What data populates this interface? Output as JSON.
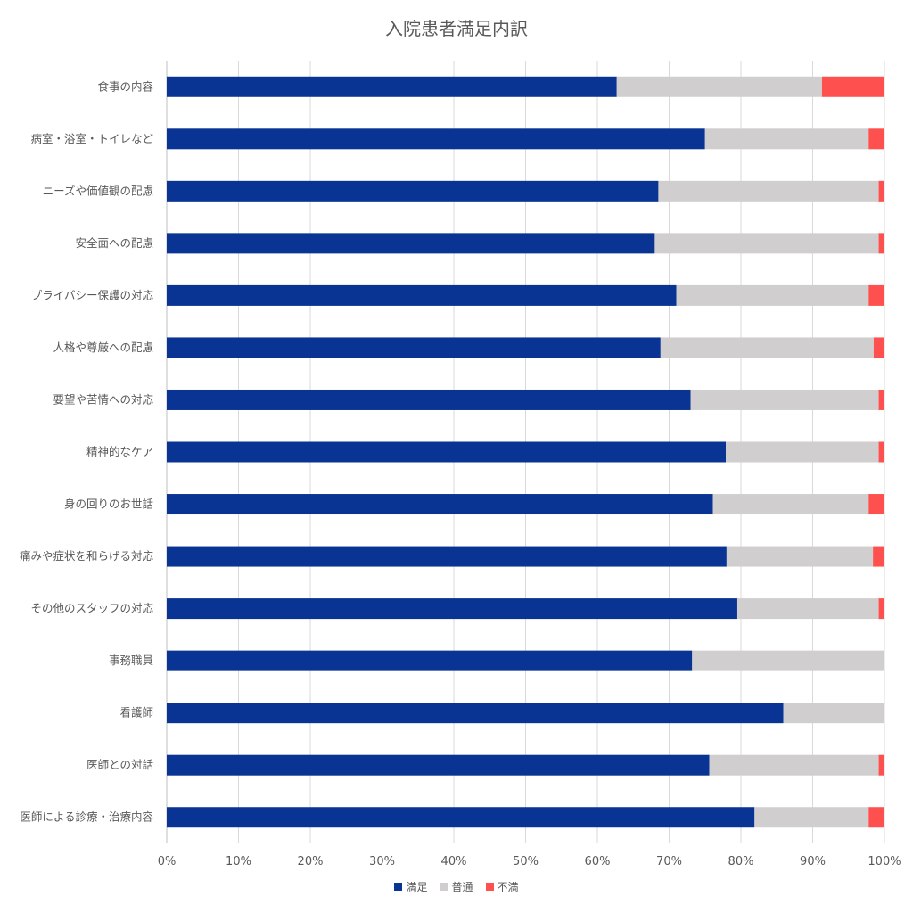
{
  "chart_data": {
    "type": "bar",
    "orientation": "horizontal",
    "stacked": "percent",
    "title": "入院患者満足内訳",
    "categories": [
      "食事の内容",
      "病室・浴室・トイレなど",
      "ニーズや価値観の配慮",
      "安全面への配慮",
      "プライバシー保護の対応",
      "人格や尊厳への配慮",
      "要望や苦情への対応",
      "精神的なケア",
      "身の回りのお世話",
      "痛みや症状を和らげる対応",
      "その他のスタッフの対応",
      "事務職員",
      "看護師",
      "医師との対話",
      "医師による診療・治療内容"
    ],
    "series": [
      {
        "name": "満足",
        "color": "#0a3493",
        "values": [
          62.7,
          75.0,
          68.5,
          68.0,
          71.0,
          68.8,
          73.0,
          77.9,
          76.1,
          78.0,
          79.5,
          73.2,
          85.9,
          75.6,
          81.9
        ]
      },
      {
        "name": "普通",
        "color": "#d0cece",
        "values": [
          28.6,
          22.8,
          30.7,
          31.2,
          26.8,
          29.7,
          26.2,
          21.3,
          21.7,
          20.4,
          19.7,
          26.8,
          14.1,
          23.6,
          15.9
        ]
      },
      {
        "name": "不満",
        "color": "#ff5050",
        "values": [
          8.7,
          2.2,
          0.8,
          0.8,
          2.2,
          1.5,
          0.8,
          0.8,
          2.2,
          1.6,
          0.8,
          0,
          0,
          0.8,
          2.2
        ]
      }
    ],
    "xlim": [
      0,
      100
    ],
    "xticks": [
      "0%",
      "10%",
      "20%",
      "30%",
      "40%",
      "50%",
      "60%",
      "70%",
      "80%",
      "90%",
      "100%"
    ],
    "grid": true,
    "legend_position": "bottom"
  }
}
